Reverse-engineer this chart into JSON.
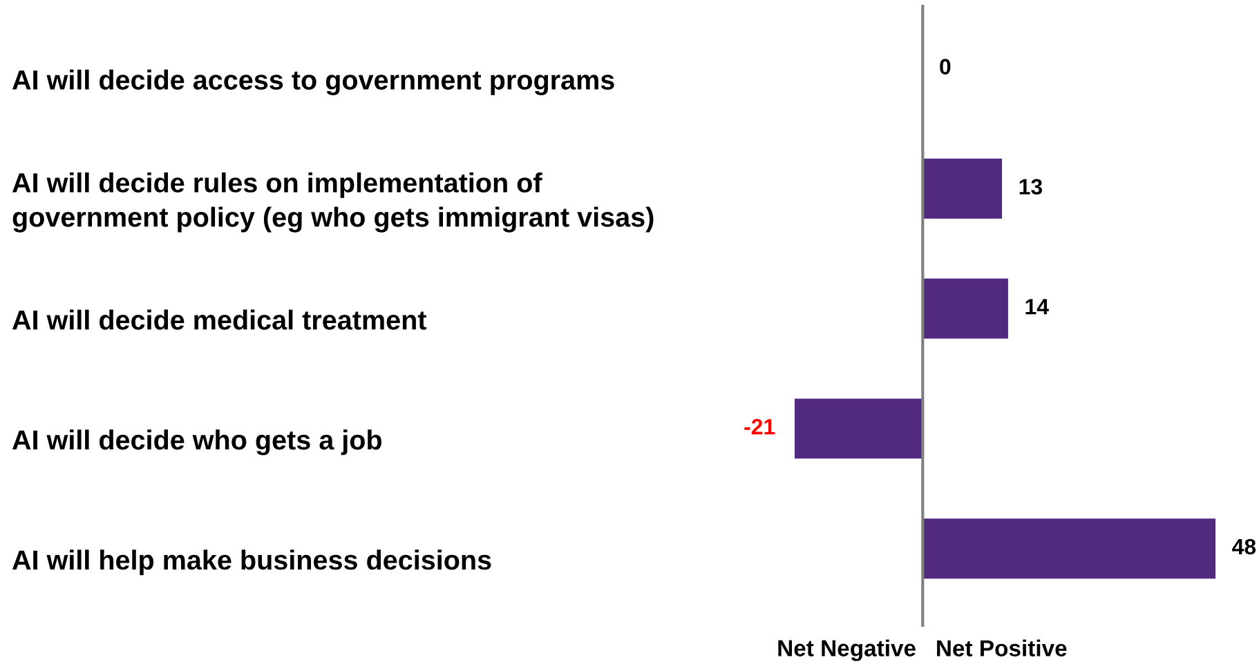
{
  "chart_data": {
    "type": "bar",
    "orientation": "horizontal",
    "categories": [
      "AI will decide access to government programs",
      "AI will decide rules on implementation of\ngovernment policy (eg who gets immigrant visas)",
      "AI will decide medical treatment",
      "AI will decide who gets a job",
      "AI will help make business decisions"
    ],
    "values": [
      0,
      13,
      14,
      -21,
      48
    ],
    "color": "#512a7f",
    "data_labels": true,
    "annotations": [
      "Net Negative",
      "Net Positive"
    ]
  }
}
